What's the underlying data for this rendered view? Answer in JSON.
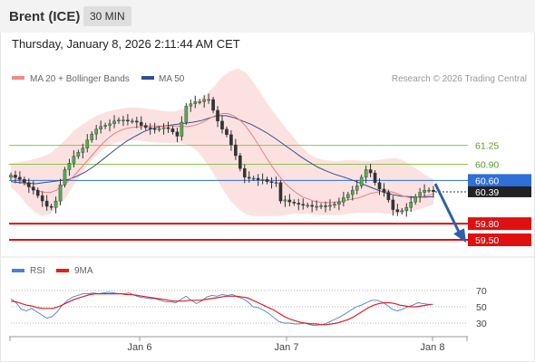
{
  "header": {
    "instrument": "Brent (ICE)",
    "timeframe": "30 MIN"
  },
  "timestamp": "Thursday, January 8, 2026 2:11:44 AM CET",
  "legend": {
    "ma20": {
      "label": "MA 20 + Bollinger Bands",
      "color": "#f28b82"
    },
    "ma50": {
      "label": "MA 50",
      "color": "#2f4f8f"
    },
    "credit": "Research © 2026 Trading Central"
  },
  "rsi_legend": {
    "rsi": {
      "label": "RSI",
      "color": "#4a7fd6"
    },
    "ma": {
      "label": "9MA",
      "color": "#e02020"
    }
  },
  "levels": [
    {
      "value": 61.25,
      "label": "61.25",
      "kind": "resistance",
      "color": "#8bc34a"
    },
    {
      "value": 60.9,
      "label": "60.90",
      "kind": "resistance",
      "color": "#8bc34a"
    },
    {
      "value": 60.6,
      "label": "60.60",
      "kind": "pivot",
      "color": "#2f6fd6"
    },
    {
      "value": 59.8,
      "label": "59.80",
      "kind": "support",
      "color": "#e01010"
    },
    {
      "value": 59.5,
      "label": "59.50",
      "kind": "support",
      "color": "#e01010"
    }
  ],
  "current_price": {
    "value": 60.39,
    "label": "60.39",
    "color": "#222222"
  },
  "x_axis": {
    "ticks": [
      "Jan 6",
      "Jan 7",
      "Jan 8"
    ]
  },
  "rsi_axis": {
    "ticks": [
      70,
      50,
      30
    ]
  },
  "chart_data": [
    {
      "type": "candlestick",
      "title": "Brent (ICE) 30 MIN",
      "ylim": [
        59.45,
        62.2
      ],
      "x_ticks": [
        "Jan 6",
        "Jan 7",
        "Jan 8"
      ],
      "close": [
        60.7,
        60.66,
        60.62,
        60.56,
        60.48,
        60.42,
        60.32,
        60.22,
        60.12,
        60.1,
        60.22,
        60.52,
        60.8,
        60.92,
        61.05,
        61.12,
        61.2,
        61.35,
        61.46,
        61.55,
        61.6,
        61.62,
        61.65,
        61.7,
        61.72,
        61.72,
        61.7,
        61.7,
        61.68,
        61.62,
        61.58,
        61.56,
        61.55,
        61.56,
        61.58,
        61.56,
        61.5,
        61.42,
        61.68,
        61.98,
        62.02,
        62.06,
        62.06,
        62.1,
        62.1,
        61.9,
        61.7,
        61.55,
        61.45,
        61.26,
        61.06,
        60.82,
        60.66,
        60.64,
        60.64,
        60.61,
        60.62,
        60.58,
        60.56,
        60.56,
        60.22,
        60.24,
        60.2,
        60.18,
        60.16,
        60.14,
        60.14,
        60.12,
        60.12,
        60.13,
        60.12,
        60.14,
        60.16,
        60.2,
        60.28,
        60.34,
        60.42,
        60.5,
        60.66,
        60.8,
        60.74,
        60.56,
        60.44,
        60.38,
        60.24,
        60.06,
        60.02,
        60.04,
        60.1,
        60.2,
        60.3,
        60.38,
        60.42,
        60.42,
        60.39
      ],
      "ma20": [
        60.68,
        60.64,
        60.58,
        60.5,
        60.44,
        60.4,
        60.38,
        60.38,
        60.42,
        60.5,
        60.58,
        60.68,
        60.8,
        60.92,
        61.04,
        61.16,
        61.28,
        61.38,
        61.46,
        61.52,
        61.56,
        61.58,
        61.59,
        61.6,
        61.61,
        61.61,
        61.61,
        61.61,
        61.61,
        61.61,
        61.6,
        61.6,
        61.62,
        61.65,
        61.7,
        61.76,
        61.81,
        61.84,
        61.84,
        61.8,
        61.73,
        61.62,
        61.48,
        61.32,
        61.15,
        60.98,
        60.82,
        60.68,
        60.55,
        60.45,
        60.37,
        60.3,
        60.26,
        60.22,
        60.2,
        60.19,
        60.19,
        60.2,
        60.22,
        60.24,
        60.26,
        60.28,
        60.32,
        60.36,
        60.38,
        60.4,
        60.4,
        60.38,
        60.34,
        60.3,
        60.28,
        60.28,
        60.3,
        60.32,
        60.35
      ],
      "bb_upper": [
        60.92,
        60.94,
        60.96,
        61.0,
        61.04,
        61.1,
        61.22,
        61.36,
        61.52,
        61.62,
        61.72,
        61.8,
        61.86,
        61.9,
        61.93,
        61.95,
        61.95,
        61.94,
        61.92,
        61.9,
        61.88,
        61.88,
        61.92,
        62.0,
        62.1,
        62.2,
        62.35,
        62.52,
        62.62,
        62.68,
        62.6,
        62.42,
        62.2,
        61.98,
        61.78,
        61.6,
        61.42,
        61.24,
        61.1,
        61.02,
        60.98,
        60.96,
        60.96,
        60.98,
        60.98,
        60.96,
        60.96,
        60.98,
        61.0,
        61.02,
        60.98,
        60.9,
        60.8,
        60.7,
        60.62
      ],
      "bb_lower": [
        60.48,
        60.34,
        60.16,
        60.02,
        59.94,
        59.98,
        60.1,
        60.28,
        60.5,
        60.72,
        60.92,
        61.08,
        61.2,
        61.28,
        61.32,
        61.34,
        61.34,
        61.33,
        61.31,
        61.3,
        61.3,
        61.3,
        61.28,
        61.24,
        61.12,
        60.92,
        60.7,
        60.46,
        60.24,
        60.08,
        59.98,
        59.94,
        59.94,
        59.94,
        59.94,
        59.96,
        59.98,
        59.98,
        59.98,
        59.96,
        59.96,
        59.96,
        59.96,
        59.98,
        60.0,
        60.0,
        60.0,
        60.0,
        59.98,
        59.98,
        60.0,
        60.02,
        60.06,
        60.1,
        60.16
      ],
      "ma50": [
        60.58,
        60.56,
        60.55,
        60.54,
        60.56,
        60.58,
        60.6,
        60.62,
        60.68,
        60.76,
        60.86,
        60.98,
        61.1,
        61.22,
        61.33,
        61.42,
        61.5,
        61.56,
        61.6,
        61.62,
        61.64,
        61.66,
        61.68,
        61.71,
        61.76,
        61.8,
        61.8,
        61.76,
        61.7,
        61.64,
        61.56,
        61.47,
        61.37,
        61.26,
        61.15,
        61.04,
        60.94,
        60.85,
        60.78,
        60.72,
        60.67,
        60.62,
        60.56,
        60.5,
        60.44,
        60.38,
        60.34,
        60.31,
        60.3,
        60.29,
        60.29,
        60.3
      ]
    },
    {
      "type": "line",
      "title": "RSI",
      "ylim": [
        20,
        80
      ],
      "yticks": [
        70,
        50,
        30
      ],
      "series": [
        {
          "name": "RSI",
          "values": [
            60,
            55,
            47,
            45,
            48,
            44,
            40,
            36,
            38,
            44,
            52,
            58,
            62,
            64,
            66,
            66,
            67,
            66,
            67,
            68,
            67,
            66,
            66,
            67,
            64,
            62,
            61,
            60,
            60,
            58,
            56,
            56,
            55,
            59,
            63,
            58,
            54,
            57,
            62,
            64,
            63,
            65,
            64,
            65,
            62,
            60,
            56,
            50,
            49,
            46,
            42,
            37,
            32,
            30,
            30,
            29,
            29,
            30,
            28,
            27,
            28,
            29,
            32,
            35,
            38,
            42,
            46,
            50,
            52,
            55,
            58,
            58,
            56,
            52,
            47,
            45,
            47,
            50,
            52,
            55,
            54,
            53,
            53
          ]
        },
        {
          "name": "9MA",
          "values": [
            57,
            56,
            54,
            52,
            51,
            49,
            48,
            48,
            48,
            50,
            53,
            56,
            59,
            61,
            63,
            65,
            66,
            66,
            66,
            66,
            66,
            66,
            65,
            65,
            64,
            63,
            62,
            61,
            60,
            59,
            58,
            57,
            57,
            57,
            58,
            58,
            58,
            59,
            60,
            61,
            62,
            63,
            63,
            63,
            62,
            61,
            58,
            55,
            52,
            49,
            46,
            42,
            38,
            35,
            33,
            31,
            30,
            29,
            29,
            28,
            28,
            29,
            30,
            32,
            34,
            37,
            41,
            45,
            49,
            52,
            54,
            55,
            55,
            54,
            52,
            51,
            50,
            50,
            51,
            52,
            53
          ]
        }
      ]
    }
  ]
}
